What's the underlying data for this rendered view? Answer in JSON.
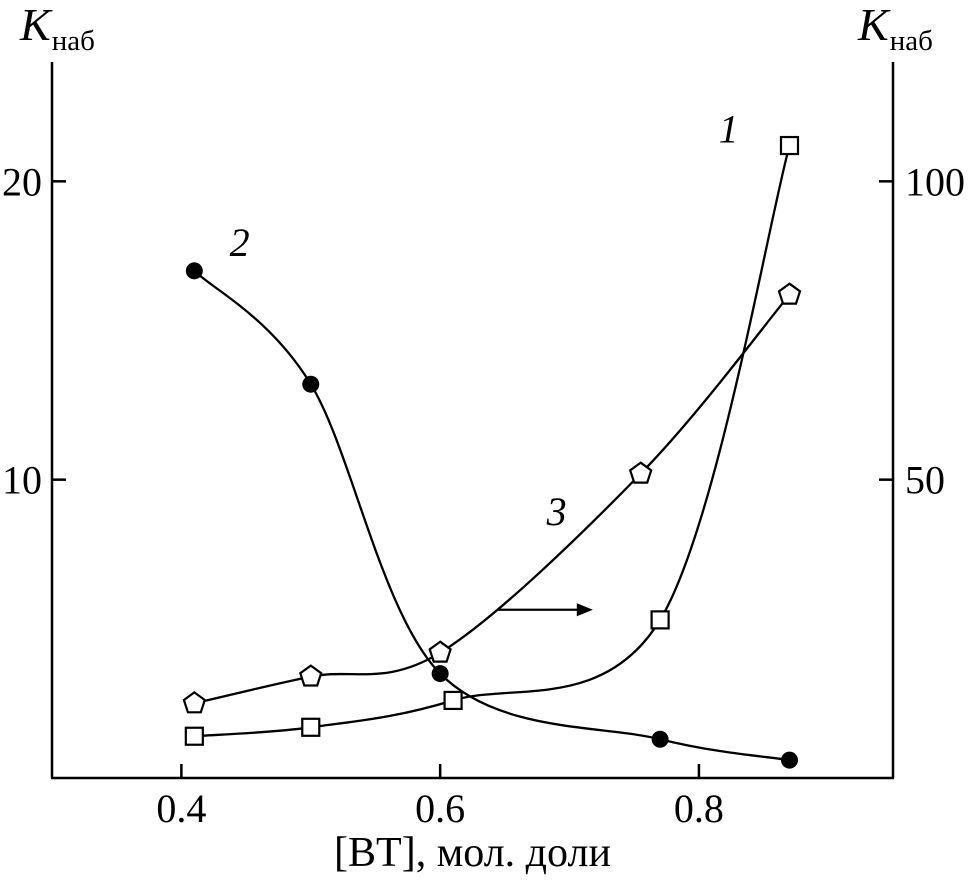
{
  "axes": {
    "left_title": {
      "main": "K",
      "sub": "наб"
    },
    "right_title": {
      "main": "K",
      "sub": "наб"
    }
  },
  "chart_data": {
    "type": "line",
    "title": "",
    "xlabel": "[BT], мол. доли",
    "ylabel_left": "Kнаб",
    "ylabel_right": "Kнаб",
    "grid": false,
    "legend": "none",
    "x_range": [
      0.3,
      0.95
    ],
    "x_tick_labels": [
      "0.4",
      "0.6",
      "0.8"
    ],
    "x_tick_values": [
      0.4,
      0.6,
      0.8
    ],
    "left_axis": {
      "range": [
        0,
        24
      ],
      "ticks": [
        10,
        20
      ]
    },
    "right_axis": {
      "range": [
        0,
        120
      ],
      "ticks": [
        50,
        100
      ]
    },
    "colors": {
      "line": "#000000",
      "background": "#ffffff"
    },
    "series": [
      {
        "name": "1",
        "axis": "left",
        "marker": "square-open",
        "x": [
          0.41,
          0.5,
          0.61,
          0.77,
          0.87
        ],
        "y": [
          1.4,
          1.7,
          2.6,
          5.3,
          21.2
        ],
        "label": {
          "text": "1",
          "x": 0.823,
          "y": 21.3
        }
      },
      {
        "name": "2",
        "axis": "left",
        "marker": "circle-filled",
        "x": [
          0.41,
          0.5,
          0.6,
          0.77,
          0.87
        ],
        "y": [
          17.0,
          13.2,
          3.5,
          1.3,
          0.6
        ],
        "label": {
          "text": "2",
          "x": 0.445,
          "y": 17.5
        }
      },
      {
        "name": "3",
        "axis": "right",
        "marker": "pentagon-open",
        "x": [
          0.41,
          0.5,
          0.6,
          0.755,
          0.87
        ],
        "y": [
          12.5,
          17.0,
          21.0,
          51.0,
          81.0
        ],
        "label": {
          "text": "3",
          "x": 0.69,
          "y": 42.4
        }
      }
    ],
    "annotation_arrow": {
      "axis": "right",
      "x1": 0.645,
      "x2": 0.718,
      "y": 28.2
    }
  }
}
